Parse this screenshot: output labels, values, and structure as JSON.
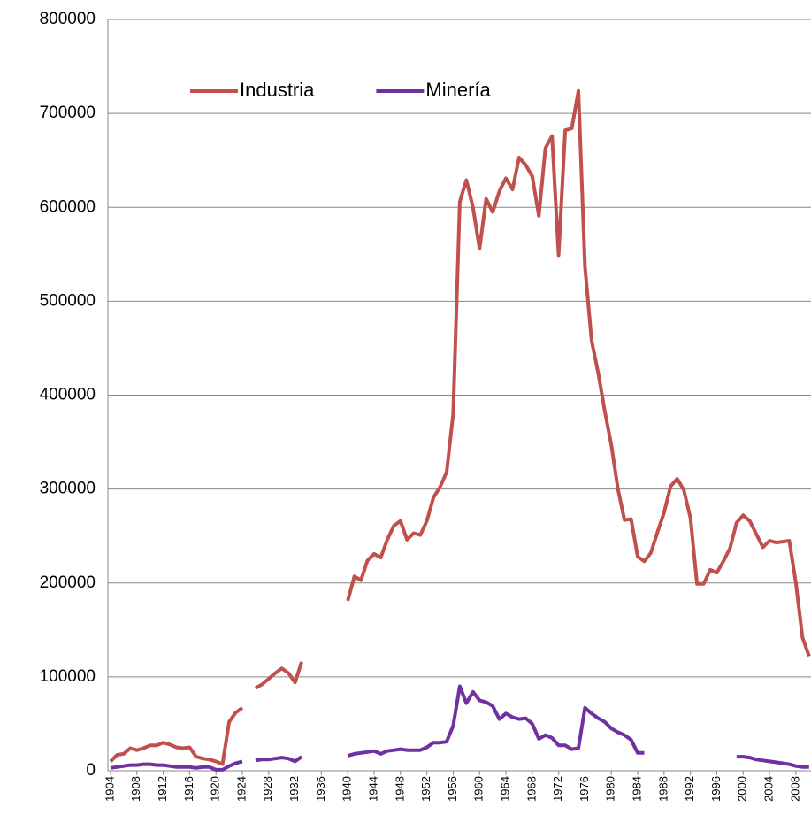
{
  "chart_data": {
    "type": "line",
    "x": [
      1904,
      1905,
      1906,
      1907,
      1908,
      1909,
      1910,
      1911,
      1912,
      1913,
      1914,
      1915,
      1916,
      1917,
      1918,
      1919,
      1920,
      1921,
      1922,
      1923,
      1924,
      1925,
      1926,
      1927,
      1928,
      1929,
      1930,
      1931,
      1932,
      1933,
      1934,
      1935,
      1936,
      1937,
      1938,
      1939,
      1940,
      1941,
      1942,
      1943,
      1944,
      1945,
      1946,
      1947,
      1948,
      1949,
      1950,
      1951,
      1952,
      1953,
      1954,
      1955,
      1956,
      1957,
      1958,
      1959,
      1960,
      1961,
      1962,
      1963,
      1964,
      1965,
      1966,
      1967,
      1968,
      1969,
      1970,
      1971,
      1972,
      1973,
      1974,
      1975,
      1976,
      1977,
      1978,
      1979,
      1980,
      1981,
      1982,
      1983,
      1984,
      1985,
      1986,
      1987,
      1988,
      1989,
      1990,
      1991,
      1992,
      1993,
      1994,
      1995,
      1996,
      1997,
      1998,
      1999,
      2000,
      2001,
      2002,
      2003,
      2004,
      2005,
      2006,
      2007,
      2008,
      2009,
      2010
    ],
    "series": [
      {
        "name": "Industria",
        "color": "#c0504d",
        "values": [
          10000,
          17000,
          18000,
          24000,
          22000,
          24000,
          27000,
          27000,
          30000,
          28000,
          25000,
          24000,
          25000,
          15000,
          13000,
          12000,
          10000,
          7000,
          52000,
          62000,
          67000,
          null,
          88000,
          92000,
          98000,
          104000,
          109000,
          104000,
          94000,
          116000,
          null,
          null,
          null,
          null,
          null,
          null,
          181000,
          207000,
          203000,
          224000,
          231000,
          227000,
          246000,
          261000,
          266000,
          246000,
          253000,
          251000,
          266000,
          291000,
          302000,
          318000,
          380000,
          606000,
          629000,
          600000,
          556000,
          609000,
          595000,
          617000,
          631000,
          619000,
          653000,
          645000,
          633000,
          591000,
          663000,
          676000,
          549000,
          682000,
          684000,
          724000,
          537000,
          458000,
          424000,
          383000,
          347000,
          300000,
          267000,
          268000,
          228000,
          223000,
          232000,
          254000,
          275000,
          303000,
          311000,
          299000,
          269000,
          199000,
          199000,
          214000,
          211000,
          223000,
          237000,
          264000,
          272000,
          266000,
          252000,
          238000,
          245000,
          243000,
          244000,
          245000,
          200000,
          142000,
          122000
        ]
      },
      {
        "name": "Minería",
        "color": "#7030a0",
        "values": [
          3000,
          4000,
          5000,
          6000,
          6000,
          7000,
          7000,
          6000,
          6000,
          5000,
          4000,
          4000,
          4000,
          3000,
          4000,
          4000,
          1000,
          1000,
          5000,
          8000,
          10000,
          null,
          11000,
          12000,
          12000,
          13000,
          14000,
          13000,
          10000,
          15000,
          null,
          null,
          null,
          null,
          null,
          null,
          16000,
          18000,
          19000,
          20000,
          21000,
          18000,
          21000,
          22000,
          23000,
          22000,
          22000,
          22000,
          25000,
          30000,
          30000,
          31000,
          48000,
          90000,
          72000,
          84000,
          75000,
          73000,
          69000,
          55000,
          61000,
          57000,
          55000,
          56000,
          50000,
          34000,
          38000,
          35000,
          27000,
          27000,
          23000,
          24000,
          67000,
          61000,
          56000,
          52000,
          45000,
          41000,
          38000,
          33000,
          19000,
          19000,
          null,
          null,
          null,
          null,
          null,
          null,
          null,
          null,
          null,
          null,
          null,
          null,
          null,
          15000,
          15000,
          14000,
          12000,
          11000,
          10000,
          9000,
          8000,
          7000,
          5000,
          4000,
          4000
        ]
      }
    ],
    "xlim": [
      1903.6,
      2010.3
    ],
    "xticks": [
      1904,
      1908,
      1912,
      1916,
      1920,
      1924,
      1928,
      1932,
      1936,
      1940,
      1944,
      1948,
      1952,
      1956,
      1960,
      1964,
      1968,
      1972,
      1976,
      1980,
      1984,
      1988,
      1992,
      1996,
      2000,
      2004,
      2008
    ],
    "ylim": [
      0,
      800000
    ],
    "yticks": [
      0,
      100000,
      200000,
      300000,
      400000,
      500000,
      600000,
      700000,
      800000
    ],
    "grid": true,
    "legend": "top-left"
  }
}
